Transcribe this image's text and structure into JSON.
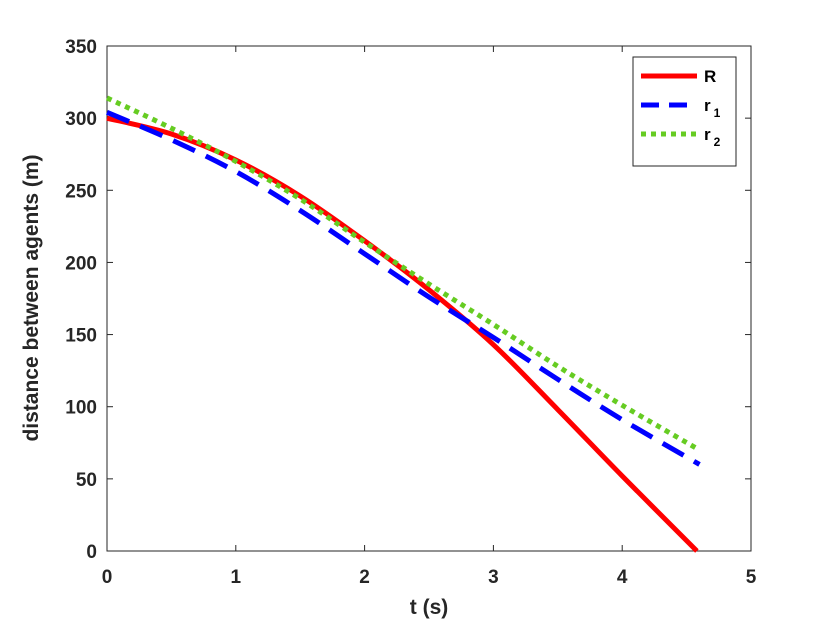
{
  "chart_data": {
    "type": "line",
    "xlabel": "t (s)",
    "ylabel": "distance between agents (m)",
    "xlim": [
      0,
      5
    ],
    "ylim": [
      0,
      350
    ],
    "xticks": [
      "0",
      "1",
      "2",
      "3",
      "4",
      "5"
    ],
    "yticks": [
      "0",
      "50",
      "100",
      "150",
      "200",
      "250",
      "300",
      "350"
    ],
    "grid": false,
    "legend_position": "top-right",
    "series": [
      {
        "name": "R",
        "name_main": "R",
        "name_sub": "",
        "color": "#ff0000",
        "style": "solid",
        "x": [
          0,
          0.5,
          1.0,
          1.5,
          2.0,
          2.5,
          3.0,
          3.5,
          4.0,
          4.58
        ],
        "y": [
          300,
          289,
          271,
          246,
          215,
          181,
          143,
          98,
          52,
          0
        ]
      },
      {
        "name": "r1",
        "name_main": "r",
        "name_sub": "1",
        "color": "#0000ff",
        "style": "dashed",
        "x": [
          0,
          0.5,
          1.0,
          1.5,
          2.0,
          2.5,
          3.0,
          3.5,
          4.0,
          4.6
        ],
        "y": [
          304,
          285,
          263,
          236,
          206,
          176,
          148,
          119,
          91,
          60
        ]
      },
      {
        "name": "r2",
        "name_main": "r",
        "name_sub": "2",
        "color": "#66cc22",
        "style": "dotted",
        "x": [
          0,
          0.5,
          1.0,
          1.5,
          2.0,
          2.5,
          3.0,
          3.5,
          4.0,
          4.6
        ],
        "y": [
          314,
          293,
          270,
          244,
          214,
          185,
          157,
          128,
          101,
          70
        ]
      }
    ]
  }
}
